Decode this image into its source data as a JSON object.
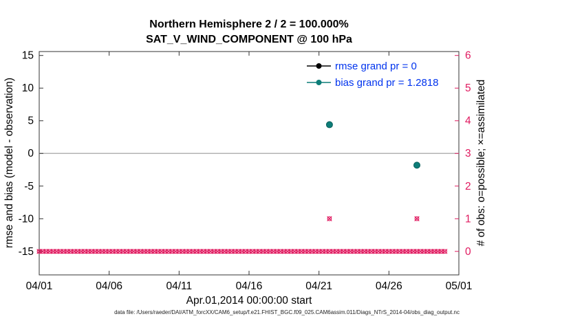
{
  "figure": {
    "title_line1": "Northern Hemisphere 2 / 2 = 100.000%",
    "title_line2": "SAT_V_WIND_COMPONENT @ 100 hPa",
    "xlabel": "Apr.01,2014 00:00:00 start",
    "ylabel_left": "rmse and bias (model - observation)",
    "ylabel_right": "# of obs: o=possible; ×=assimilated",
    "footer": "data file: /Users/raeder/DAI/ATM_forcXX/CAM6_setup/f.e21.FHIST_BGC.f09_025.CAM6assim.011/Diags_NTrS_2014-04/obs_diag_output.nc"
  },
  "legend": {
    "items": [
      {
        "label": "rmse grand pr = 0",
        "series": "rmse"
      },
      {
        "label": "bias grand pr = 1.2818",
        "series": "bias"
      }
    ]
  },
  "colors": {
    "rmse": "#000000",
    "bias": "#0d7d78",
    "bias_edge": "#0a5f5b",
    "obs": "#e0195f",
    "legend_text": "#0033ee",
    "zero_line": "#b3b3b3",
    "axis": "#333333"
  },
  "chart_data": {
    "type": "scatter",
    "title": "Northern Hemisphere 2 / 2 = 100.000% — SAT_V_WIND_COMPONENT @ 100 hPa",
    "x_axis": {
      "label": "Apr.01,2014 00:00:00 start",
      "range_days": [
        0,
        30
      ],
      "tick_days": [
        0,
        5,
        10,
        15,
        20,
        25,
        30
      ],
      "tick_labels": [
        "04/01",
        "04/06",
        "04/11",
        "04/16",
        "04/21",
        "04/26",
        "05/01"
      ]
    },
    "left_axis": {
      "label": "rmse and bias (model - observation)",
      "ticks": [
        -15,
        -10,
        -5,
        0,
        5,
        10,
        15
      ],
      "lim": [
        -18.6,
        15.6
      ]
    },
    "right_axis": {
      "label": "# of obs: o=possible; ×=assimilated",
      "ticks": [
        0,
        1,
        2,
        3,
        4,
        5,
        6
      ],
      "left_equiv_scale": 5,
      "left_equiv_offset": -15
    },
    "zero_line_left_value": 0,
    "series": [
      {
        "name": "rmse",
        "grand_value": 0,
        "points": []
      },
      {
        "name": "bias",
        "grand_value": 1.2818,
        "points": [
          {
            "day": 20.75,
            "value": 4.4
          },
          {
            "day": 27.0,
            "value": -1.8
          }
        ]
      }
    ],
    "obs_counts": {
      "zero_row": {
        "start_day": 0,
        "end_day": 29.0,
        "step_day": 0.25,
        "value": 0
      },
      "nonzero": [
        {
          "day": 20.75,
          "value": 1
        },
        {
          "day": 27.0,
          "value": 1
        }
      ]
    }
  }
}
